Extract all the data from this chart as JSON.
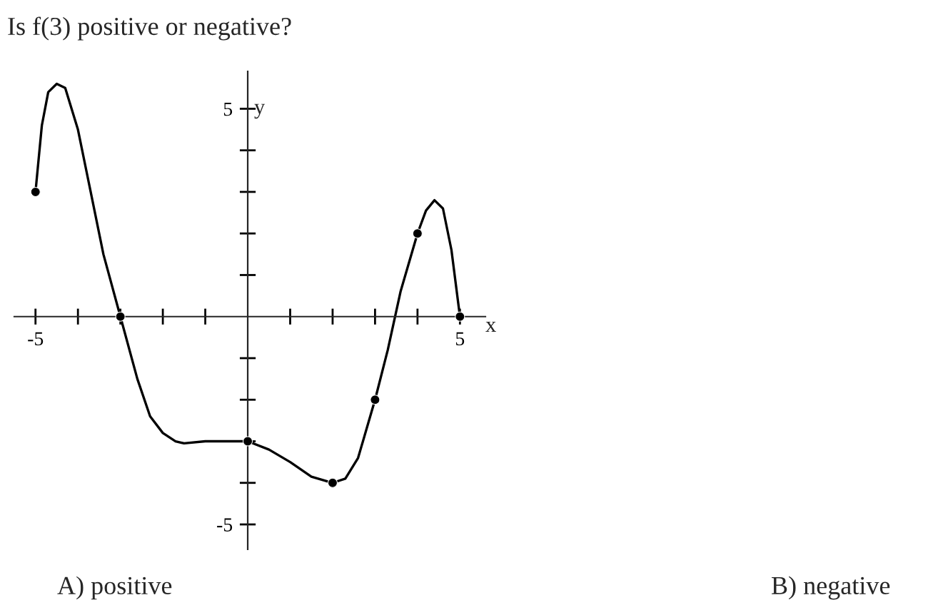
{
  "chart_data": {
    "type": "line",
    "title": "Is f(3) positive or negative?",
    "xlabel": "x",
    "ylabel": "y",
    "annotations": [
      "A) positive",
      "B) negative"
    ],
    "series": [
      {
        "color": "#000000",
        "marker": "none",
        "x": [
          -5,
          -4.85,
          -4.7,
          -4.5,
          -4.3,
          -4.0,
          -3.7,
          -3.4,
          -3.0,
          -2.6,
          -2.3,
          -2.0,
          -1.7,
          -1.5,
          -1.0,
          -0.5,
          0,
          0.5,
          1.0,
          1.5,
          2.0,
          2.3,
          2.6,
          3.0,
          3.3,
          3.6,
          4.0,
          4.2,
          4.4,
          4.6,
          4.8,
          5.0
        ],
        "values": [
          3,
          4.6,
          5.4,
          5.6,
          5.5,
          4.5,
          3.0,
          1.5,
          0,
          -1.5,
          -2.4,
          -2.8,
          -3.0,
          -3.05,
          -3.0,
          -3.0,
          -3,
          -3.2,
          -3.5,
          -3.85,
          -4,
          -3.9,
          -3.4,
          -2,
          -0.8,
          0.6,
          2,
          2.55,
          2.8,
          2.6,
          1.6,
          0
        ]
      },
      {
        "type": "scatter",
        "color": "#000000",
        "marker": "circle",
        "x": [
          -5,
          -3,
          0,
          2,
          3,
          4,
          5
        ],
        "values": [
          3,
          0,
          -3,
          -4,
          -2,
          2,
          0
        ]
      }
    ],
    "xlim": [
      -5.5,
      5.6
    ],
    "ylim": [
      -5.6,
      5.9
    ],
    "xticks": [
      -5,
      {
        "value": -4,
        "label": null
      },
      {
        "value": -3,
        "label": null
      },
      {
        "value": -2,
        "label": null
      },
      {
        "value": -1,
        "label": null
      },
      {
        "value": 1,
        "label": null
      },
      {
        "value": 2,
        "label": null
      },
      {
        "value": 3,
        "label": null
      },
      {
        "value": 4,
        "label": null
      },
      5
    ],
    "yticks": [
      -5,
      {
        "value": -4,
        "label": null
      },
      {
        "value": -3,
        "label": null
      },
      {
        "value": -2,
        "label": null
      },
      {
        "value": -1,
        "label": null
      },
      {
        "value": 1,
        "label": null
      },
      {
        "value": 2,
        "label": null
      },
      {
        "value": 3,
        "label": null
      },
      {
        "value": 4,
        "label": null
      },
      5
    ],
    "grid": false,
    "legend": false
  }
}
